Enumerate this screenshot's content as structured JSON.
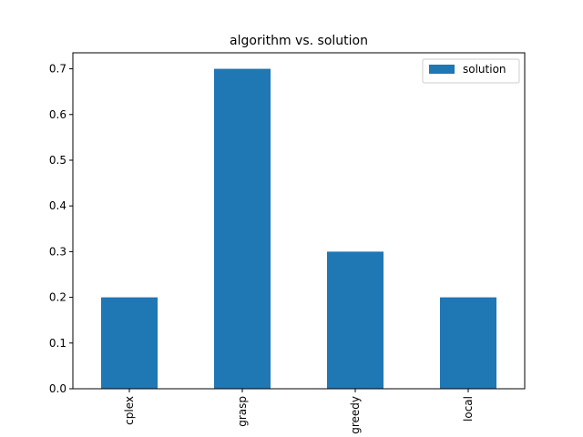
{
  "chart_data": {
    "type": "bar",
    "title": "algorithm vs. solution",
    "xlabel": "",
    "ylabel": "",
    "categories": [
      "cplex",
      "grasp",
      "greedy",
      "local"
    ],
    "series": [
      {
        "name": "solution",
        "values": [
          0.2,
          0.7,
          0.3,
          0.2
        ],
        "color": "#1f77b4"
      }
    ],
    "ylim": [
      0,
      0.735
    ],
    "yticks": [
      0.0,
      0.1,
      0.2,
      0.3,
      0.4,
      0.5,
      0.6,
      0.7
    ],
    "ytick_labels": [
      "0.0",
      "0.1",
      "0.2",
      "0.3",
      "0.4",
      "0.5",
      "0.6",
      "0.7"
    ],
    "grid": false,
    "legend": {
      "position": "top-right"
    },
    "xtick_rotation": "vertical"
  }
}
